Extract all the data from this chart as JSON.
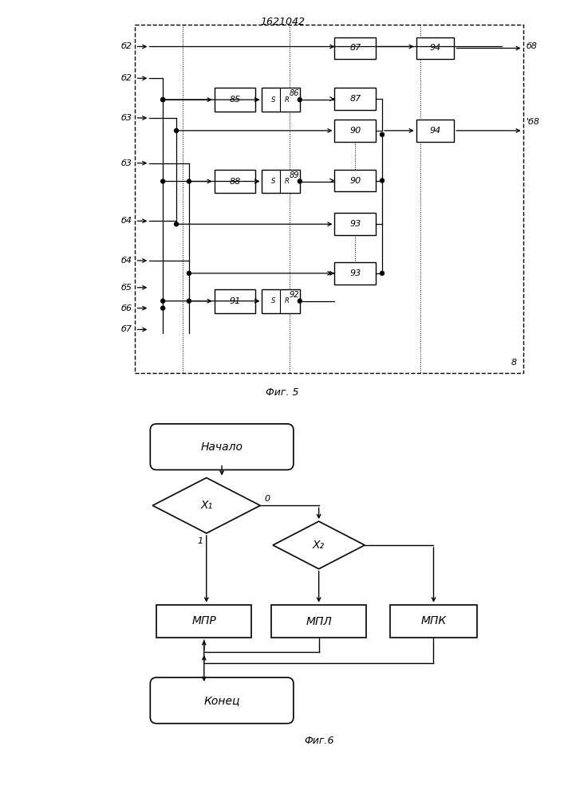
{
  "title": "1621042",
  "fig5_label": "Фиг. 5",
  "fig6_label": "Фиг.6",
  "bg_color": "#ffffff",
  "lc": "#000000"
}
